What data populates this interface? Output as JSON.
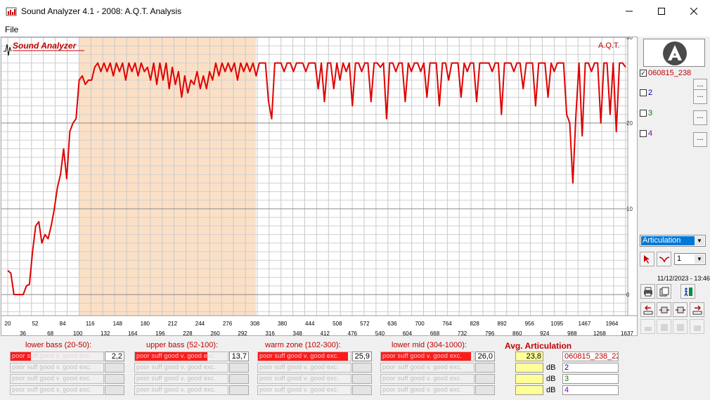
{
  "window": {
    "title": "Sound Analyzer 4.1 - 2008: A.Q.T. Analysis"
  },
  "menu": {
    "file": "File"
  },
  "plot": {
    "brand": "Sound Analyzer",
    "corner_label": "A.Q.T.",
    "highlight_color": "#fbe0c6",
    "line_color": "#e00000"
  },
  "chart_data": {
    "type": "line",
    "title": "",
    "xlabel": "",
    "ylabel": "",
    "x_ticks_top_row": [
      "20",
      "52",
      "84",
      "116",
      "148",
      "180",
      "212",
      "244",
      "276",
      "308",
      "380",
      "444",
      "508",
      "572",
      "636",
      "700",
      "764",
      "828",
      "892",
      "956",
      "1095",
      "1467",
      "1964"
    ],
    "x_ticks_bottom_row": [
      "36",
      "68",
      "100",
      "132",
      "164",
      "196",
      "228",
      "260",
      "292",
      "316",
      "348",
      "412",
      "476",
      "540",
      "604",
      "668",
      "732",
      "796",
      "860",
      "924",
      "988",
      "1268",
      "1637"
    ],
    "y_ticks": [
      "30",
      "20",
      "10",
      "0"
    ],
    "ylim": [
      -2,
      30
    ],
    "highlighted_region_x": [
      "100",
      "308"
    ],
    "series": [
      {
        "values": [
          2.8,
          2.5,
          0,
          0,
          0,
          0,
          1,
          1.2,
          5,
          8,
          8.5,
          6,
          7,
          6.5,
          8,
          10,
          12.5,
          14,
          17,
          13.5,
          19,
          20,
          20.5,
          25,
          25.5,
          24.5,
          25,
          25,
          26.5,
          27,
          26,
          27,
          26,
          27,
          25.5,
          27,
          26,
          27,
          25,
          27,
          26,
          27,
          25.5,
          27,
          26,
          26.5,
          25,
          27,
          24.5,
          27,
          25,
          27,
          24,
          26.5,
          24.5,
          26,
          23,
          25.5,
          23.5,
          25,
          24.5,
          26,
          24,
          25.5,
          24,
          26,
          25,
          27,
          25.5,
          27,
          26,
          27,
          26,
          27,
          25,
          27,
          26,
          27,
          26,
          27,
          25.5,
          27,
          27,
          27,
          22.5,
          20.5,
          27,
          27,
          27,
          26,
          27,
          27,
          26,
          27,
          27,
          27,
          26,
          27,
          27,
          27,
          24,
          27,
          22.5,
          27,
          27,
          24,
          27,
          25,
          27,
          26,
          27,
          22,
          27,
          27,
          26,
          27,
          27,
          22.5,
          27,
          27,
          26.5,
          27,
          20.5,
          27,
          27,
          26,
          27,
          27,
          22.5,
          27,
          26,
          27,
          27,
          26,
          27,
          23,
          27,
          27,
          27,
          22,
          27,
          27,
          25,
          27,
          27,
          27,
          23,
          27,
          26,
          27,
          27,
          22.5,
          27,
          27,
          27,
          27,
          26,
          27,
          27,
          21,
          27,
          27,
          27,
          26,
          27,
          27,
          24,
          27,
          27,
          27,
          22,
          27,
          27,
          27,
          23,
          27,
          26,
          27,
          27,
          27,
          21,
          20,
          13,
          21,
          27,
          18.5,
          27,
          27,
          26,
          27,
          27,
          20,
          27,
          27,
          21,
          27,
          19,
          27,
          27,
          26.5
        ]
      }
    ]
  },
  "sidebar": {
    "channels": [
      {
        "label": "060815_238",
        "checked": true,
        "color": "#c00000"
      },
      {
        "label": "2",
        "checked": false,
        "color": "#0000c0"
      },
      {
        "label": "3",
        "checked": false,
        "color": "#008000"
      },
      {
        "label": "4",
        "checked": false,
        "color": "#8000c0"
      }
    ],
    "dots_label": "...",
    "mode_select": "Articulation",
    "channel_select": "1",
    "datetime": "11/12/2023 - 13:46"
  },
  "zones": [
    {
      "title": "lower bass (20-50):",
      "value": "2,2",
      "fill_pct": 22
    },
    {
      "title": "upper bass (52-100):",
      "value": "13,7",
      "fill_pct": 78
    },
    {
      "title": "warm zone (102-300):",
      "value": "25,9",
      "fill_pct": 97
    },
    {
      "title": "lower mid (304-1000):",
      "value": "26,0",
      "fill_pct": 97
    }
  ],
  "rating_labels": "poor suff  good  v. good  exc.",
  "averages": {
    "title": "Avg. Articulation",
    "unit": "dB",
    "rows": [
      {
        "value": "23,8",
        "name": "060815_238_22",
        "color": "#c00000"
      },
      {
        "value": "",
        "name": "2",
        "color": "#0000c0"
      },
      {
        "value": "",
        "name": "3",
        "color": "#008000"
      },
      {
        "value": "",
        "name": "4",
        "color": "#8000c0"
      }
    ]
  }
}
